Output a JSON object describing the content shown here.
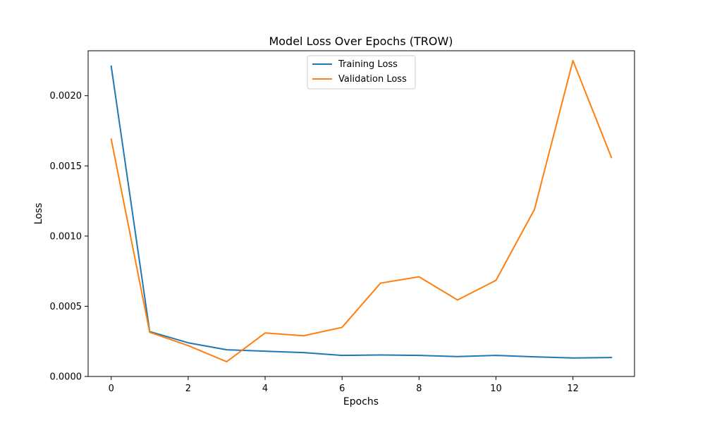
{
  "chart_data": {
    "type": "line",
    "title": "Model Loss Over Epochs (TROW)",
    "xlabel": "Epochs",
    "ylabel": "Loss",
    "x": [
      0,
      1,
      2,
      3,
      4,
      5,
      6,
      7,
      8,
      9,
      10,
      11,
      12,
      13
    ],
    "xlim": [
      -0.6,
      13.6
    ],
    "ylim": [
      0,
      0.00232
    ],
    "xticks": [
      0,
      2,
      4,
      6,
      8,
      10,
      12
    ],
    "xtick_labels": [
      "0",
      "2",
      "4",
      "6",
      "8",
      "10",
      "12"
    ],
    "yticks": [
      0,
      0.0005,
      0.001,
      0.0015,
      0.002
    ],
    "ytick_labels": [
      "0.0000",
      "0.0005",
      "0.0010",
      "0.0015",
      "0.0020"
    ],
    "grid": false,
    "legend_position": "top-center",
    "series": [
      {
        "name": "Training Loss",
        "color": "#1f77b4",
        "values": [
          0.00221,
          0.00032,
          0.00024,
          0.00019,
          0.00018,
          0.00017,
          0.00015,
          0.000153,
          0.00015,
          0.000142,
          0.00015,
          0.00014,
          0.000132,
          0.000135
        ]
      },
      {
        "name": "Validation Loss",
        "color": "#ff7f0e",
        "values": [
          0.00169,
          0.000315,
          0.00022,
          0.000105,
          0.00031,
          0.00029,
          0.00035,
          0.000665,
          0.00071,
          0.000545,
          0.000685,
          0.00119,
          0.00225,
          0.00156
        ]
      }
    ]
  }
}
